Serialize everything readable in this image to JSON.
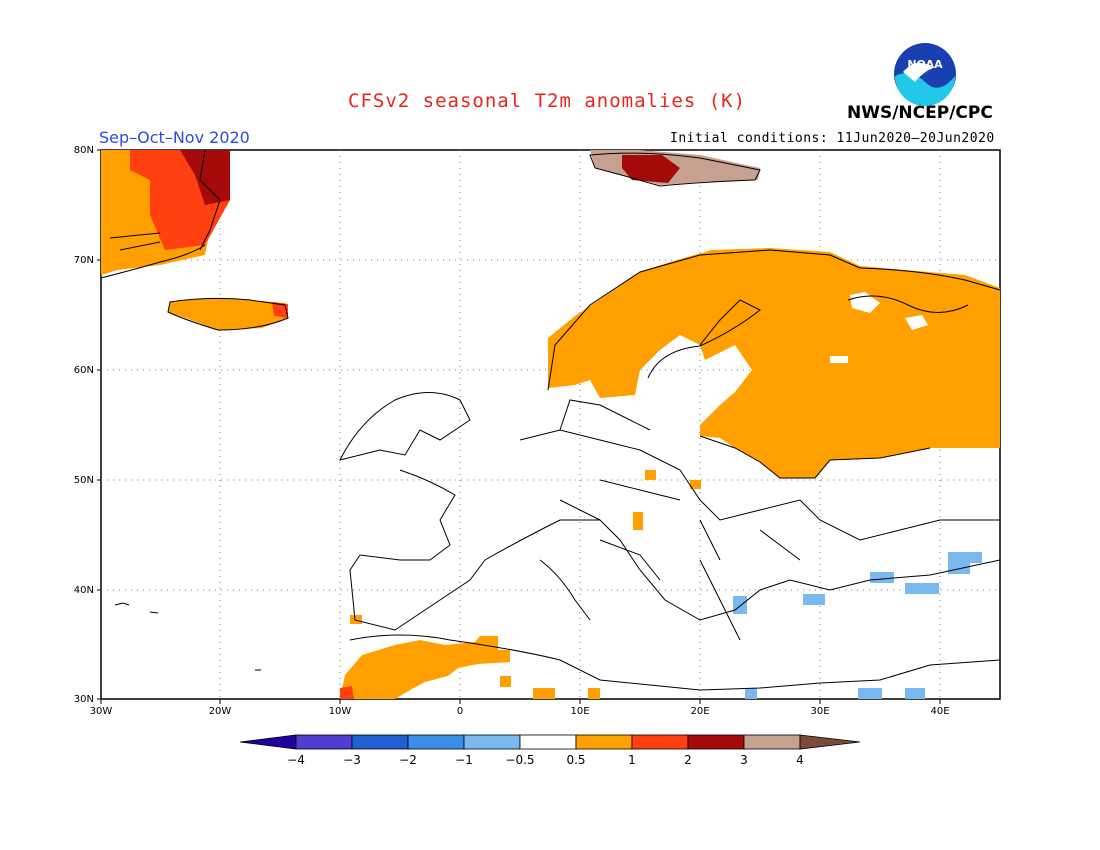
{
  "title": "CFSv2 seasonal T2m anomalies (K)",
  "season": "Sep–Oct–Nov 2020",
  "initial_conditions": "Initial conditions: 11Jun2020–20Jun2020",
  "agency": "NWS/NCEP/CPC",
  "logo_text": "NOAA",
  "lon_labels": [
    "30W",
    "20W",
    "10W",
    "0",
    "10E",
    "20E",
    "30E",
    "40E"
  ],
  "lat_labels": [
    "80N",
    "70N",
    "60N",
    "50N",
    "40N",
    "30N"
  ],
  "colorbar": {
    "labels": [
      "−4",
      "−3",
      "−2",
      "−1",
      "−0.5",
      "0.5",
      "1",
      "2",
      "3",
      "4"
    ],
    "colors": [
      "#1e00a0",
      "#4e3fd0",
      "#1f5fd0",
      "#3a8ee8",
      "#7ab8f0",
      "#ffffff",
      "#ffa000",
      "#ff4010",
      "#a50a0a",
      "#c8a090",
      "#7a4a3a"
    ]
  },
  "colors": {
    "title": "#e8241c",
    "season": "#2a4ce0",
    "warm": "#ffa000",
    "hot": "#ff4010",
    "very_hot": "#a50a0a",
    "extreme": "#c8a090",
    "cool": "#7ab8f0"
  }
}
